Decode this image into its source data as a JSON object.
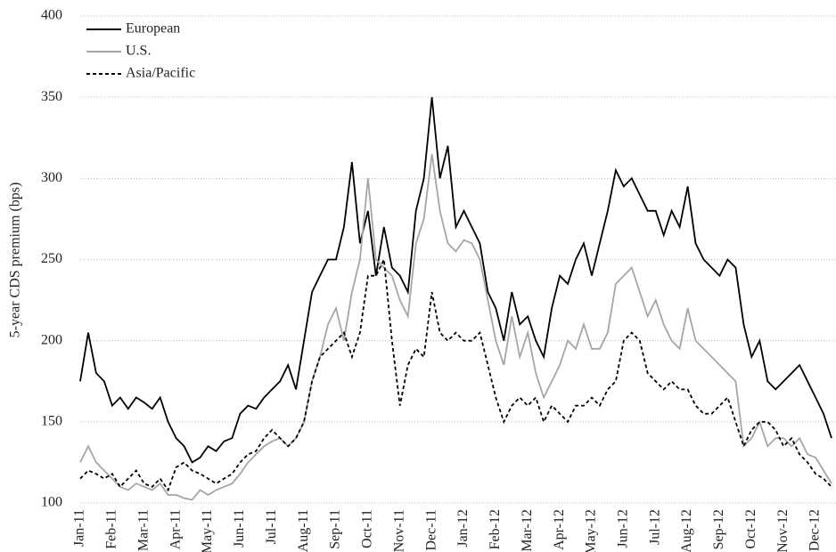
{
  "chart_data": {
    "type": "line",
    "ylabel": "5-year CDS premium (bps)",
    "categories": [
      "Jan-11",
      null,
      null,
      null,
      "Feb-11",
      null,
      null,
      null,
      "Mar-11",
      null,
      null,
      null,
      "Apr-11",
      null,
      null,
      null,
      "May-11",
      null,
      null,
      null,
      "Jun-11",
      null,
      null,
      null,
      "Jul-11",
      null,
      null,
      null,
      "Aug-11",
      null,
      null,
      null,
      "Sep-11",
      null,
      null,
      null,
      "Oct-11",
      null,
      null,
      null,
      "Nov-11",
      null,
      null,
      null,
      "Dec-11",
      null,
      null,
      null,
      "Jan-12",
      null,
      null,
      null,
      "Feb-12",
      null,
      null,
      null,
      "Mar-12",
      null,
      null,
      null,
      "Apr-12",
      null,
      null,
      null,
      "May-12",
      null,
      null,
      null,
      "Jun-12",
      null,
      null,
      null,
      "Jul-12",
      null,
      null,
      null,
      "Aug-12",
      null,
      null,
      null,
      "Sep-12",
      null,
      null,
      null,
      "Oct-12",
      null,
      null,
      null,
      "Nov-12",
      null,
      null,
      null,
      "Dec-12",
      null,
      null
    ],
    "series": [
      {
        "name": "European",
        "color": "#000000",
        "dash": "solid",
        "values": [
          175,
          205,
          180,
          175,
          160,
          165,
          158,
          165,
          162,
          158,
          165,
          150,
          140,
          135,
          125,
          128,
          135,
          132,
          138,
          140,
          155,
          160,
          158,
          165,
          170,
          175,
          185,
          170,
          200,
          230,
          240,
          250,
          250,
          270,
          310,
          260,
          280,
          240,
          270,
          245,
          240,
          230,
          280,
          300,
          350,
          300,
          320,
          270,
          280,
          270,
          260,
          230,
          220,
          200,
          230,
          210,
          215,
          200,
          190,
          220,
          240,
          235,
          250,
          260,
          240,
          260,
          280,
          305,
          295,
          300,
          290,
          280,
          280,
          265,
          280,
          270,
          295,
          260,
          250,
          245,
          240,
          250,
          245,
          210,
          190,
          200,
          175,
          170,
          175,
          180,
          185,
          175,
          165,
          155,
          140
        ]
      },
      {
        "name": "U.S.",
        "color": "#a6a6a6",
        "dash": "solid",
        "values": [
          125,
          135,
          125,
          120,
          115,
          110,
          108,
          112,
          110,
          108,
          112,
          105,
          105,
          103,
          102,
          108,
          105,
          108,
          110,
          112,
          118,
          125,
          130,
          135,
          138,
          140,
          135,
          140,
          150,
          175,
          190,
          210,
          220,
          200,
          230,
          250,
          300,
          250,
          245,
          240,
          225,
          215,
          260,
          275,
          315,
          280,
          260,
          255,
          262,
          260,
          250,
          225,
          200,
          185,
          215,
          190,
          205,
          180,
          165,
          175,
          185,
          200,
          195,
          210,
          195,
          195,
          205,
          235,
          240,
          245,
          230,
          215,
          225,
          210,
          200,
          195,
          220,
          200,
          195,
          190,
          185,
          180,
          175,
          135,
          140,
          150,
          135,
          140,
          140,
          135,
          140,
          130,
          128,
          120,
          112
        ]
      },
      {
        "name": "Asia/Pacific",
        "color": "#000000",
        "dash": "dashed",
        "values": [
          115,
          120,
          118,
          115,
          118,
          110,
          115,
          120,
          112,
          110,
          115,
          108,
          122,
          125,
          120,
          118,
          115,
          112,
          115,
          118,
          125,
          130,
          132,
          140,
          145,
          140,
          135,
          140,
          150,
          175,
          190,
          195,
          200,
          205,
          190,
          205,
          240,
          240,
          250,
          200,
          160,
          185,
          195,
          190,
          230,
          205,
          200,
          205,
          200,
          200,
          205,
          185,
          165,
          150,
          160,
          165,
          160,
          165,
          150,
          160,
          155,
          150,
          160,
          160,
          165,
          160,
          170,
          175,
          200,
          205,
          200,
          180,
          175,
          170,
          175,
          170,
          170,
          160,
          155,
          155,
          160,
          165,
          150,
          135,
          145,
          150,
          150,
          145,
          135,
          140,
          130,
          125,
          118,
          115,
          110
        ]
      }
    ],
    "ylim": [
      100,
      400
    ],
    "yticks": [
      100,
      150,
      200,
      250,
      300,
      350,
      400
    ],
    "grid": true,
    "legend": "upper left"
  }
}
